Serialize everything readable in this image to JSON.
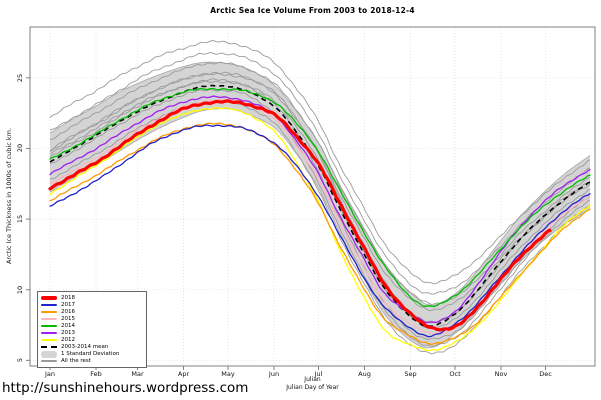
{
  "page": {
    "url_text": "http://sunshinehours.wordpress.com"
  },
  "chart_data": {
    "type": "line",
    "title": "Arctic Sea Ice Volume From 2003 to 2018-12-4",
    "ylabel": "Arctic Ice Thickness in 1000s of cubic km.",
    "xlabel_line1": "Julian",
    "xlabel_line2": "Julian Day of Year",
    "xlim": [
      1,
      365
    ],
    "ylim": [
      4.6,
      28.6
    ],
    "y_ticks": [
      5,
      10,
      15,
      20,
      25
    ],
    "x_ticks": {
      "labels": [
        "Jan",
        "Feb",
        "Mar",
        "Apr",
        "May",
        "Jun",
        "Jul",
        "Aug",
        "Sep",
        "Oct",
        "Nov",
        "Dec"
      ],
      "days": [
        1,
        32,
        60,
        91,
        121,
        152,
        182,
        213,
        244,
        274,
        305,
        335
      ]
    },
    "grid": {
      "style": "dotted",
      "color": "#e0e0e0"
    },
    "frame_color": "#808080",
    "sample_days": [
      1,
      15,
      32,
      46,
      60,
      74,
      91,
      105,
      121,
      135,
      152,
      166,
      182,
      196,
      213,
      227,
      244,
      258,
      274,
      288,
      305,
      319,
      335,
      349,
      365
    ],
    "mean": {
      "label": "2003-2014 mean",
      "color": "#000000",
      "dashed": true,
      "values": [
        19.0,
        19.9,
        20.9,
        21.8,
        22.6,
        23.3,
        24.0,
        24.4,
        24.4,
        24.0,
        23.0,
        21.3,
        18.8,
        15.8,
        12.5,
        10.0,
        8.1,
        7.4,
        8.3,
        9.8,
        12.0,
        13.7,
        15.3,
        16.5,
        17.6
      ]
    },
    "std_band": {
      "label": "1 Standard Deviation",
      "fill": "#d4d4d4",
      "edge": "#a5a5a5",
      "std": [
        2.1,
        2.1,
        2.1,
        2.1,
        2.0,
        1.9,
        1.8,
        1.7,
        1.6,
        1.6,
        1.5,
        1.5,
        1.6,
        1.7,
        1.8,
        1.8,
        1.7,
        1.5,
        1.4,
        1.4,
        1.5,
        1.6,
        1.7,
        1.8,
        1.9
      ]
    },
    "years": [
      {
        "name": "2012",
        "color": "#ffff00",
        "width": 1.3,
        "values": [
          16.8,
          17.7,
          18.8,
          19.8,
          20.8,
          21.7,
          22.4,
          22.8,
          22.8,
          22.4,
          21.2,
          19.2,
          16.2,
          12.9,
          9.4,
          7.1,
          6.1,
          5.7,
          6.3,
          7.3,
          9.3,
          11.1,
          13.1,
          14.7,
          16.0
        ]
      },
      {
        "name": "2013",
        "color": "#a020f0",
        "width": 1.3,
        "values": [
          18.2,
          19.0,
          20.0,
          20.9,
          21.8,
          22.6,
          23.3,
          23.6,
          23.6,
          23.3,
          22.4,
          20.7,
          18.2,
          15.3,
          12.1,
          9.7,
          8.3,
          7.7,
          8.4,
          10.2,
          12.7,
          14.6,
          16.3,
          17.5,
          18.5
        ]
      },
      {
        "name": "2014",
        "color": "#00bb00",
        "width": 1.3,
        "values": [
          19.2,
          20.0,
          21.0,
          21.9,
          22.7,
          23.4,
          24.0,
          24.2,
          24.2,
          24.0,
          23.3,
          21.9,
          19.8,
          17.1,
          14.0,
          11.6,
          9.5,
          8.8,
          9.6,
          10.9,
          12.9,
          14.5,
          16.0,
          17.1,
          18.1
        ]
      },
      {
        "name": "2015",
        "color": "#ffb6c1",
        "width": 1.3,
        "values": [
          17.5,
          18.3,
          19.3,
          20.3,
          21.3,
          22.1,
          22.9,
          23.3,
          23.4,
          23.1,
          22.1,
          20.4,
          17.8,
          14.8,
          11.5,
          9.1,
          7.6,
          6.9,
          7.3,
          8.6,
          10.7,
          12.5,
          14.2,
          15.5,
          16.6
        ]
      },
      {
        "name": "2016",
        "color": "#ff9900",
        "width": 1.3,
        "values": [
          16.3,
          17.1,
          18.1,
          19.0,
          19.9,
          20.7,
          21.4,
          21.7,
          21.7,
          21.3,
          20.3,
          18.6,
          16.1,
          13.2,
          10.0,
          7.9,
          6.7,
          6.2,
          6.6,
          7.6,
          9.5,
          11.2,
          13.0,
          14.5,
          15.7
        ]
      },
      {
        "name": "2017",
        "color": "#2222cc",
        "width": 1.3,
        "values": [
          15.9,
          16.7,
          17.7,
          18.7,
          19.7,
          20.6,
          21.3,
          21.6,
          21.6,
          21.3,
          20.4,
          18.9,
          16.6,
          13.9,
          10.8,
          8.7,
          7.3,
          6.7,
          7.6,
          8.9,
          11.0,
          12.7,
          14.4,
          15.7,
          16.8
        ]
      },
      {
        "name": "2018",
        "color": "#ff0000",
        "width": 3.2,
        "end_day": 338,
        "days": [
          1,
          15,
          32,
          46,
          60,
          74,
          91,
          105,
          121,
          135,
          152,
          166,
          182,
          196,
          213,
          227,
          244,
          258,
          274,
          288,
          305,
          319,
          335,
          338
        ],
        "values": [
          17.2,
          18.0,
          19.0,
          20.0,
          21.0,
          21.9,
          22.8,
          23.2,
          23.3,
          23.1,
          22.4,
          21.0,
          18.9,
          16.2,
          12.9,
          10.3,
          8.3,
          7.3,
          7.4,
          8.6,
          10.8,
          12.4,
          14.0,
          14.2
        ]
      }
    ],
    "rest": {
      "label": "All the rest",
      "color": "#9b9b9b",
      "width": 0.9,
      "years": [
        {
          "name": "2003",
          "values": [
            22.2,
            23.1,
            24.1,
            25.0,
            25.8,
            26.5,
            27.1,
            27.5,
            27.5,
            27.1,
            26.1,
            24.4,
            21.9,
            18.9,
            15.7,
            13.2,
            11.2,
            10.5,
            11.0,
            12.1,
            13.8,
            15.3,
            16.8,
            18.0,
            19.2
          ]
        },
        {
          "name": "2004",
          "values": [
            21.2,
            22.1,
            23.1,
            24.0,
            24.9,
            25.6,
            26.3,
            26.7,
            26.7,
            26.3,
            25.3,
            23.6,
            21.1,
            18.1,
            14.9,
            12.4,
            10.4,
            9.7,
            10.2,
            11.3,
            13.1,
            14.7,
            16.2,
            17.4,
            18.6
          ]
        },
        {
          "name": "2005",
          "values": [
            20.6,
            21.5,
            22.5,
            23.4,
            24.2,
            24.9,
            25.6,
            26.0,
            26.0,
            25.6,
            24.6,
            22.9,
            20.4,
            17.4,
            14.2,
            11.7,
            9.8,
            9.0,
            9.5,
            10.6,
            12.5,
            14.1,
            15.6,
            16.8,
            18.0
          ]
        },
        {
          "name": "2006",
          "values": [
            19.9,
            20.8,
            21.8,
            22.7,
            23.5,
            24.2,
            24.9,
            25.2,
            25.2,
            24.9,
            23.9,
            22.2,
            19.7,
            16.8,
            13.6,
            11.2,
            9.3,
            8.6,
            9.1,
            10.3,
            12.2,
            13.8,
            15.3,
            16.6,
            17.7
          ]
        },
        {
          "name": "2007",
          "values": [
            19.6,
            20.4,
            21.4,
            22.3,
            23.1,
            23.8,
            24.4,
            24.7,
            24.7,
            24.3,
            23.2,
            21.3,
            18.4,
            15.1,
            11.6,
            9.0,
            7.1,
            6.5,
            7.0,
            8.3,
            10.4,
            12.2,
            14.0,
            15.4,
            16.6
          ]
        },
        {
          "name": "2008",
          "values": [
            19.8,
            20.7,
            21.7,
            22.6,
            23.5,
            24.2,
            24.9,
            25.3,
            25.3,
            25.0,
            24.0,
            22.3,
            19.6,
            16.5,
            13.1,
            10.5,
            8.4,
            7.7,
            8.3,
            9.7,
            11.9,
            13.6,
            15.2,
            16.4,
            17.5
          ]
        },
        {
          "name": "2009",
          "values": [
            19.4,
            20.2,
            21.2,
            22.1,
            23.0,
            23.7,
            24.4,
            24.8,
            24.8,
            24.4,
            23.4,
            21.7,
            19.1,
            16.0,
            12.6,
            10.0,
            8.1,
            7.3,
            7.9,
            9.3,
            11.4,
            13.1,
            14.7,
            16.0,
            17.1
          ]
        },
        {
          "name": "2010",
          "values": [
            18.8,
            19.7,
            20.7,
            21.6,
            22.4,
            23.1,
            23.8,
            24.1,
            24.1,
            23.7,
            22.5,
            20.5,
            17.6,
            14.4,
            11.0,
            8.5,
            6.7,
            6.0,
            6.6,
            7.9,
            10.1,
            11.9,
            13.7,
            15.1,
            16.3
          ]
        },
        {
          "name": "2011",
          "values": [
            17.8,
            18.6,
            19.6,
            20.5,
            21.4,
            22.2,
            22.9,
            23.3,
            23.3,
            22.9,
            21.8,
            19.9,
            17.0,
            13.8,
            10.4,
            7.9,
            6.1,
            5.5,
            6.1,
            7.4,
            9.6,
            11.4,
            13.2,
            14.7,
            16.0
          ]
        }
      ]
    },
    "legend": {
      "items": [
        {
          "label": "2018",
          "swatch": "thick",
          "color": "#ff0000"
        },
        {
          "label": "2017",
          "swatch": "line",
          "color": "#2222cc"
        },
        {
          "label": "2016",
          "swatch": "line",
          "color": "#ff9900"
        },
        {
          "label": "2015",
          "swatch": "line",
          "color": "#ffb6c1"
        },
        {
          "label": "2014",
          "swatch": "line",
          "color": "#00bb00"
        },
        {
          "label": "2013",
          "swatch": "line",
          "color": "#a020f0"
        },
        {
          "label": "2012",
          "swatch": "line",
          "color": "#ffff00"
        },
        {
          "label": "2003-2014 mean",
          "swatch": "dashed",
          "color": "#000000"
        },
        {
          "label": "1 Standard Deviation",
          "swatch": "band",
          "color": "#d4d4d4"
        },
        {
          "label": "All the rest",
          "swatch": "line",
          "color": "#9b9b9b"
        }
      ]
    }
  }
}
